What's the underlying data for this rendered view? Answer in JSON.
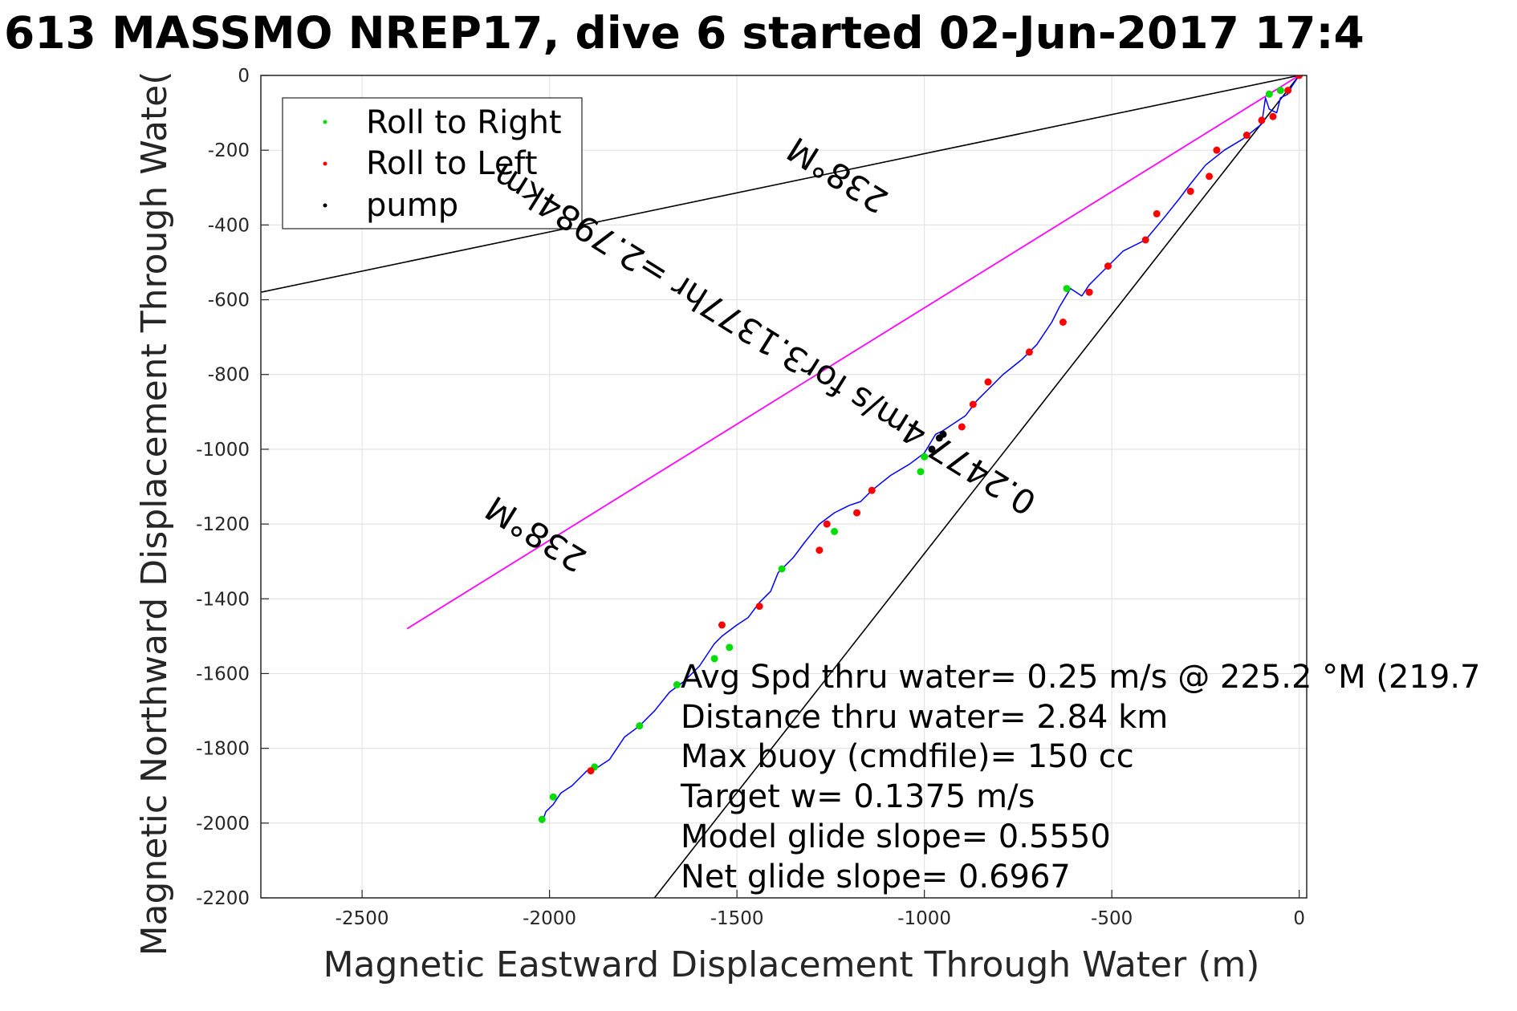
{
  "chart_data": {
    "type": "line",
    "title": "613 MASSMO NREP17, dive 6 started 02-Jun-2017 17:4",
    "xlabel": "Magnetic Eastward Displacement Through Water (m)",
    "ylabel": "Magnetic Northward Displacement Through Wate(",
    "xlim": [
      -2770,
      20
    ],
    "ylim": [
      -2200,
      0
    ],
    "xticks": [
      -2500,
      -2000,
      -1500,
      -1000,
      -500,
      0
    ],
    "yticks": [
      0,
      -200,
      -400,
      -600,
      -800,
      -1000,
      -1200,
      -1400,
      -1600,
      -1800,
      -2000,
      -2200
    ],
    "grid": true,
    "legend": {
      "placement": "top-left",
      "entries": [
        {
          "label": "Roll to Right",
          "color": "#00dd00"
        },
        {
          "label": "Roll to Left",
          "color": "#ff0000"
        },
        {
          "label": "pump",
          "color": "#000000"
        }
      ]
    },
    "series": [
      {
        "name": "track",
        "color": "#0000ff",
        "x": [
          0,
          -20,
          -30,
          -50,
          -60,
          -80,
          -90,
          -100,
          -150,
          -200,
          -250,
          -290,
          -320,
          -360,
          -410,
          -470,
          -520,
          -560,
          -580,
          -610,
          -640,
          -660,
          -700,
          -740,
          -790,
          -830,
          -860,
          -890,
          -950,
          -970,
          -1000,
          -1040,
          -1090,
          -1140,
          -1170,
          -1200,
          -1240,
          -1280,
          -1320,
          -1350,
          -1390,
          -1410,
          -1440,
          -1470,
          -1500,
          -1540,
          -1560,
          -1600,
          -1640,
          -1680,
          -1720,
          -1760,
          -1800,
          -1840,
          -1870,
          -1900,
          -1940,
          -1970,
          -1990,
          -2010,
          -2020
        ],
        "y": [
          0,
          -30,
          -50,
          -60,
          -100,
          -90,
          -60,
          -130,
          -170,
          -200,
          -240,
          -290,
          -330,
          -380,
          -440,
          -470,
          -520,
          -560,
          -590,
          -570,
          -620,
          -660,
          -720,
          -760,
          -800,
          -840,
          -870,
          -910,
          -950,
          -960,
          -1010,
          -1040,
          -1070,
          -1110,
          -1140,
          -1150,
          -1170,
          -1200,
          -1250,
          -1290,
          -1330,
          -1380,
          -1410,
          -1450,
          -1470,
          -1500,
          -1520,
          -1580,
          -1620,
          -1650,
          -1700,
          -1740,
          -1770,
          -1830,
          -1850,
          -1860,
          -1900,
          -1920,
          -1950,
          -1970,
          -2000
        ]
      },
      {
        "name": "roll-right",
        "color": "#00dd00",
        "x": [
          -2020,
          -1990,
          -1880,
          -1760,
          -1660,
          -1560,
          -1520,
          -1380,
          -1240,
          -1010,
          -1000,
          -620,
          -80,
          -50
        ],
        "y": [
          -1990,
          -1930,
          -1850,
          -1740,
          -1630,
          -1560,
          -1530,
          -1320,
          -1220,
          -1060,
          -1020,
          -570,
          -50,
          -40
        ]
      },
      {
        "name": "roll-left",
        "color": "#ff0000",
        "x": [
          -1890,
          -1540,
          -1440,
          -1280,
          -1260,
          -1180,
          -1140,
          -900,
          -870,
          -830,
          -720,
          -630,
          -560,
          -510,
          -410,
          -380,
          -290,
          -240,
          -220,
          -140,
          -100,
          -70,
          -30,
          0
        ],
        "y": [
          -1860,
          -1470,
          -1420,
          -1270,
          -1200,
          -1170,
          -1110,
          -940,
          -880,
          -820,
          -740,
          -660,
          -580,
          -510,
          -440,
          -370,
          -310,
          -270,
          -200,
          -160,
          -120,
          -110,
          -40,
          0
        ]
      },
      {
        "name": "pump",
        "color": "#000000",
        "x": [
          -980,
          -960,
          -950
        ],
        "y": [
          -1000,
          -970,
          -960
        ]
      },
      {
        "name": "ref-line-upper",
        "color": "#000000",
        "x": [
          0,
          -2770
        ],
        "y": [
          0,
          -580
        ]
      },
      {
        "name": "ref-line-lower",
        "color": "#000000",
        "x": [
          0,
          -1720
        ],
        "y": [
          0,
          -2200
        ]
      },
      {
        "name": "heading-238",
        "color": "#ff00ff",
        "x": [
          0,
          -2380
        ],
        "y": [
          0,
          -1480
        ]
      }
    ],
    "line_labels": [
      {
        "text": "238°M",
        "x": -1215,
        "y": -240,
        "angle": 31.9
      },
      {
        "text": "0.2477 4m/s for3.1377hr =2.7984km",
        "x": -1410,
        "y": -680,
        "angle": 31.9
      },
      {
        "text": "238°M",
        "x": -2020,
        "y": -1200,
        "angle": 31.9
      }
    ],
    "annotations": [
      "Avg Spd thru water=  0.25 m/s @ 225.2 °M (219.7",
      "Distance thru water=  2.84 km",
      "Max buoy (cmdfile)= 150 cc",
      "Target w= 0.1375 m/s",
      "Model glide slope= 0.5550",
      "Net glide slope= 0.6967"
    ]
  }
}
